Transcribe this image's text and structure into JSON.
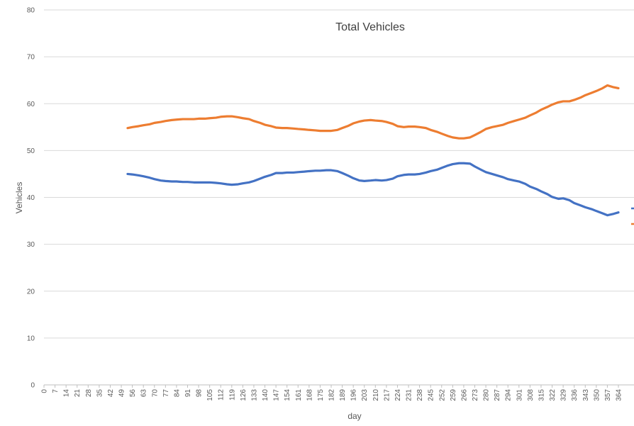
{
  "chart_data": {
    "type": "line",
    "title": "Total Vehicles",
    "xlabel": "day",
    "ylabel": "Vehicles",
    "ylim": [
      0,
      80
    ],
    "yticks": [
      0,
      10,
      20,
      30,
      40,
      50,
      60,
      70,
      80
    ],
    "xlim": [
      0,
      364
    ],
    "xticks": [
      0,
      7,
      14,
      21,
      28,
      35,
      42,
      49,
      56,
      63,
      70,
      77,
      84,
      91,
      98,
      105,
      112,
      119,
      126,
      133,
      140,
      147,
      154,
      161,
      168,
      175,
      182,
      189,
      196,
      203,
      210,
      217,
      224,
      231,
      238,
      245,
      252,
      259,
      266,
      273,
      280,
      287,
      294,
      301,
      308,
      315,
      322,
      329,
      336,
      343,
      350,
      357,
      364
    ],
    "grid": true,
    "legend": "right (partially cut off)",
    "series": [
      {
        "color": "#ED7D31",
        "x": [
          53,
          56,
          60,
          63,
          67,
          70,
          74,
          77,
          81,
          84,
          88,
          91,
          95,
          98,
          102,
          105,
          109,
          112,
          116,
          119,
          123,
          126,
          130,
          133,
          137,
          140,
          144,
          147,
          151,
          154,
          158,
          161,
          165,
          168,
          172,
          175,
          179,
          182,
          186,
          189,
          193,
          196,
          200,
          203,
          207,
          210,
          214,
          217,
          221,
          224,
          228,
          231,
          235,
          238,
          242,
          245,
          249,
          252,
          256,
          259,
          263,
          266,
          270,
          273,
          277,
          280,
          284,
          287,
          291,
          294,
          298,
          301,
          305,
          308,
          312,
          315,
          319,
          322,
          326,
          329,
          333,
          336,
          340,
          343,
          347,
          350,
          354,
          357,
          361,
          364
        ],
        "y": [
          54.8,
          55.0,
          55.2,
          55.4,
          55.6,
          55.9,
          56.1,
          56.3,
          56.5,
          56.6,
          56.7,
          56.7,
          56.7,
          56.8,
          56.8,
          56.9,
          57.0,
          57.2,
          57.3,
          57.3,
          57.1,
          56.9,
          56.7,
          56.3,
          55.9,
          55.5,
          55.2,
          54.9,
          54.8,
          54.8,
          54.7,
          54.6,
          54.5,
          54.4,
          54.3,
          54.2,
          54.2,
          54.2,
          54.4,
          54.8,
          55.3,
          55.8,
          56.2,
          56.4,
          56.5,
          56.4,
          56.3,
          56.1,
          55.7,
          55.2,
          55.0,
          55.1,
          55.1,
          55.0,
          54.8,
          54.4,
          54.0,
          53.6,
          53.1,
          52.8,
          52.6,
          52.6,
          52.8,
          53.3,
          54.0,
          54.6,
          55.0,
          55.2,
          55.5,
          55.9,
          56.3,
          56.6,
          57.0,
          57.5,
          58.1,
          58.7,
          59.3,
          59.8,
          60.3,
          60.5,
          60.5,
          60.8,
          61.3,
          61.8,
          62.3,
          62.7,
          63.3,
          63.9,
          63.5,
          63.3
        ]
      },
      {
        "color": "#4472C4",
        "x": [
          53,
          56,
          60,
          63,
          67,
          70,
          74,
          77,
          81,
          84,
          88,
          91,
          95,
          98,
          102,
          105,
          109,
          112,
          116,
          119,
          123,
          126,
          130,
          133,
          137,
          140,
          144,
          147,
          151,
          154,
          158,
          161,
          165,
          168,
          172,
          175,
          179,
          182,
          186,
          189,
          193,
          196,
          200,
          203,
          207,
          210,
          214,
          217,
          221,
          224,
          228,
          231,
          235,
          238,
          242,
          245,
          249,
          252,
          256,
          259,
          263,
          266,
          270,
          273,
          277,
          280,
          284,
          287,
          291,
          294,
          298,
          301,
          305,
          308,
          312,
          315,
          319,
          322,
          326,
          329,
          333,
          336,
          340,
          343,
          347,
          350,
          354,
          357,
          361,
          364
        ],
        "y": [
          45.0,
          44.9,
          44.7,
          44.5,
          44.2,
          43.9,
          43.6,
          43.5,
          43.4,
          43.4,
          43.3,
          43.3,
          43.2,
          43.2,
          43.2,
          43.2,
          43.1,
          43.0,
          42.8,
          42.7,
          42.8,
          43.0,
          43.2,
          43.5,
          44.0,
          44.4,
          44.8,
          45.2,
          45.2,
          45.3,
          45.3,
          45.4,
          45.5,
          45.6,
          45.7,
          45.7,
          45.8,
          45.8,
          45.6,
          45.2,
          44.6,
          44.1,
          43.6,
          43.5,
          43.6,
          43.7,
          43.6,
          43.7,
          44.0,
          44.5,
          44.8,
          44.9,
          44.9,
          45.0,
          45.3,
          45.6,
          45.9,
          46.3,
          46.8,
          47.1,
          47.3,
          47.3,
          47.2,
          46.6,
          45.9,
          45.4,
          45.0,
          44.7,
          44.3,
          43.9,
          43.6,
          43.4,
          42.9,
          42.3,
          41.8,
          41.3,
          40.7,
          40.1,
          39.7,
          39.8,
          39.4,
          38.8,
          38.3,
          37.9,
          37.5,
          37.1,
          36.6,
          36.2,
          36.5,
          36.8
        ]
      }
    ]
  }
}
